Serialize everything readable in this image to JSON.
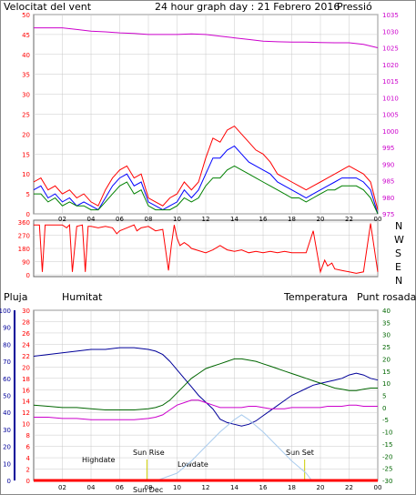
{
  "header": {
    "wind_label": "Velocitat del vent",
    "title": "24 hour graph day : 21 Febrero 2016",
    "pressure_label": "Pressió"
  },
  "colors": {
    "wind": "#ff0000",
    "gust": "#0000ff",
    "avg": "#008000",
    "pressure": "#cc00cc",
    "rain": "#ff0000",
    "humidity": "#000099",
    "temperature": "#006600",
    "dewpoint": "#cc00cc",
    "solar": "#aaccee",
    "grid": "#c8c8c8",
    "frame": "#666666",
    "sun_label": "#cccc00"
  },
  "x_ticks": [
    "02",
    "04",
    "06",
    "08",
    "10",
    "12",
    "14",
    "16",
    "18",
    "20",
    "22",
    "00"
  ],
  "lower_labels": {
    "rain": "Pluja",
    "humidity": "Humitat",
    "temperature": "Temperatura",
    "dewpoint": "Punt rosada"
  },
  "direction_letters": [
    "N",
    "W",
    "S",
    "E",
    "N"
  ],
  "annotations": {
    "highdate": "Highdate",
    "sunrise": "Sun Rise",
    "sun_dec": "Sun Dec",
    "lowdate": "Lowdate",
    "sunset": "Sun Set"
  },
  "chart_data": [
    {
      "type": "line",
      "name": "wind",
      "ylim_left": [
        0,
        50
      ],
      "yticks_left": [
        0,
        5,
        10,
        15,
        20,
        25,
        30,
        35,
        40,
        45,
        50
      ],
      "ylim_right": [
        975,
        1035
      ],
      "yticks_right": [
        975,
        980,
        985,
        990,
        995,
        1000,
        1005,
        1010,
        1015,
        1020,
        1025,
        1030,
        1035
      ],
      "xlim_hours": [
        0,
        24
      ],
      "series": [
        {
          "name": "wind",
          "axis": "left",
          "x": [
            0,
            0.5,
            1,
            1.5,
            2,
            2.5,
            3,
            3.5,
            4,
            4.5,
            5,
            5.5,
            6,
            6.5,
            7,
            7.5,
            8,
            8.5,
            9,
            9.5,
            10,
            10.5,
            11,
            11.5,
            12,
            12.5,
            13,
            13.5,
            14,
            14.5,
            15,
            15.5,
            16,
            16.5,
            17,
            17.5,
            18,
            18.5,
            19,
            19.5,
            20,
            20.5,
            21,
            21.5,
            22,
            22.5,
            23,
            23.5,
            24
          ],
          "y": [
            8,
            9,
            6,
            7,
            5,
            6,
            4,
            5,
            3,
            2,
            6,
            9,
            11,
            12,
            9,
            10,
            4,
            3,
            2,
            4,
            5,
            8,
            6,
            8,
            14,
            19,
            18,
            21,
            22,
            20,
            18,
            16,
            15,
            13,
            10,
            9,
            8,
            7,
            6,
            7,
            8,
            9,
            10,
            11,
            12,
            11,
            10,
            8,
            1
          ]
        },
        {
          "name": "gust",
          "axis": "left",
          "x": [
            0,
            0.5,
            1,
            1.5,
            2,
            2.5,
            3,
            3.5,
            4,
            4.5,
            5,
            5.5,
            6,
            6.5,
            7,
            7.5,
            8,
            8.5,
            9,
            9.5,
            10,
            10.5,
            11,
            11.5,
            12,
            12.5,
            13,
            13.5,
            14,
            14.5,
            15,
            15.5,
            16,
            16.5,
            17,
            17.5,
            18,
            18.5,
            19,
            19.5,
            20,
            20.5,
            21,
            21.5,
            22,
            22.5,
            23,
            23.5,
            24
          ],
          "y": [
            6,
            7,
            4,
            5,
            3,
            4,
            2,
            3,
            2,
            1,
            4,
            7,
            9,
            10,
            7,
            8,
            3,
            2,
            1,
            2,
            3,
            6,
            4,
            6,
            10,
            14,
            14,
            16,
            17,
            15,
            13,
            12,
            11,
            10,
            8,
            7,
            6,
            5,
            4,
            5,
            6,
            7,
            8,
            9,
            9,
            9,
            8,
            6,
            0
          ]
        },
        {
          "name": "avg",
          "axis": "left",
          "x": [
            0,
            0.5,
            1,
            1.5,
            2,
            2.5,
            3,
            3.5,
            4,
            4.5,
            5,
            5.5,
            6,
            6.5,
            7,
            7.5,
            8,
            8.5,
            9,
            9.5,
            10,
            10.5,
            11,
            11.5,
            12,
            12.5,
            13,
            13.5,
            14,
            14.5,
            15,
            15.5,
            16,
            16.5,
            17,
            17.5,
            18,
            18.5,
            19,
            19.5,
            20,
            20.5,
            21,
            21.5,
            22,
            22.5,
            23,
            23.5,
            24
          ],
          "y": [
            5,
            5,
            3,
            4,
            2,
            3,
            2,
            2,
            1,
            1,
            3,
            5,
            7,
            8,
            5,
            6,
            2,
            1,
            1,
            1,
            2,
            4,
            3,
            4,
            7,
            9,
            9,
            11,
            12,
            11,
            10,
            9,
            8,
            7,
            6,
            5,
            4,
            4,
            3,
            4,
            5,
            6,
            6,
            7,
            7,
            7,
            6,
            4,
            0
          ]
        },
        {
          "name": "pressure",
          "axis": "right",
          "x": [
            0,
            1,
            2,
            3,
            4,
            5,
            6,
            7,
            8,
            9,
            10,
            11,
            12,
            13,
            14,
            15,
            16,
            17,
            18,
            19,
            20,
            21,
            22,
            23,
            24
          ],
          "y": [
            1031,
            1031,
            1031,
            1030.5,
            1030,
            1029.8,
            1029.5,
            1029.3,
            1029,
            1029,
            1029,
            1029.2,
            1029,
            1028.5,
            1028,
            1027.5,
            1027,
            1026.8,
            1026.7,
            1026.7,
            1026.6,
            1026.5,
            1026.5,
            1026,
            1025
          ]
        }
      ]
    },
    {
      "type": "line",
      "name": "wind_direction",
      "ylim": [
        0,
        360
      ],
      "yticks": [
        0,
        90,
        180,
        270,
        360
      ],
      "series": [
        {
          "name": "direction",
          "x": [
            0,
            0.4,
            0.6,
            0.8,
            2,
            2.3,
            2.5,
            2.7,
            3,
            3.4,
            3.6,
            3.8,
            4,
            4.5,
            5,
            5.5,
            5.8,
            6,
            6.5,
            7,
            7.2,
            7.5,
            8,
            8.5,
            9,
            9.4,
            9.6,
            9.8,
            10,
            10.2,
            10.5,
            10.8,
            11,
            12,
            12.5,
            13,
            13.5,
            14,
            14.5,
            15,
            15.5,
            16,
            16.5,
            17,
            17.5,
            18,
            18.5,
            19,
            19.5,
            20,
            20.3,
            20.5,
            20.8,
            21,
            21.5,
            22,
            22.5,
            23,
            23.5,
            24
          ],
          "y": [
            340,
            340,
            20,
            340,
            340,
            320,
            340,
            20,
            330,
            340,
            20,
            330,
            330,
            320,
            330,
            320,
            280,
            300,
            320,
            340,
            300,
            320,
            330,
            300,
            310,
            30,
            200,
            340,
            250,
            200,
            220,
            200,
            180,
            150,
            170,
            200,
            170,
            160,
            170,
            150,
            160,
            150,
            160,
            150,
            160,
            150,
            150,
            150,
            300,
            20,
            100,
            60,
            80,
            40,
            30,
            20,
            10,
            20,
            350,
            20
          ]
        }
      ]
    },
    {
      "type": "line",
      "name": "rain_humidity_temperature",
      "ylim_humidity": [
        0,
        100
      ],
      "yticks_humidity": [
        0,
        10,
        20,
        30,
        40,
        50,
        60,
        70,
        80,
        90,
        100
      ],
      "ylim_rain": [
        0,
        30
      ],
      "yticks_rain": [
        0,
        2,
        4,
        6,
        8,
        10,
        12,
        14,
        16,
        18,
        20,
        22,
        24,
        26,
        28,
        30
      ],
      "ylim_temperature": [
        -30,
        40
      ],
      "yticks_temperature": [
        -30,
        -25,
        -20,
        -15,
        -10,
        -5,
        0,
        5,
        10,
        15,
        20,
        25,
        30,
        35,
        40
      ],
      "series": [
        {
          "name": "humidity",
          "axis": "humidity",
          "x": [
            0,
            1,
            2,
            3,
            4,
            5,
            6,
            7,
            8,
            8.5,
            9,
            9.5,
            10,
            10.5,
            11,
            11.5,
            12,
            12.5,
            13,
            13.5,
            14,
            14.5,
            15,
            15.5,
            16,
            16.5,
            17,
            17.5,
            18,
            18.5,
            19,
            19.5,
            20,
            20.5,
            21,
            21.5,
            22,
            22.5,
            23,
            23.5,
            24
          ],
          "y": [
            73,
            74,
            75,
            76,
            77,
            77,
            78,
            78,
            77,
            76,
            74,
            70,
            65,
            60,
            55,
            50,
            46,
            42,
            36,
            34,
            33,
            32,
            33,
            35,
            38,
            41,
            44,
            47,
            50,
            52,
            54,
            56,
            57,
            58,
            59,
            60,
            62,
            63,
            62,
            60,
            59
          ]
        },
        {
          "name": "temperature",
          "axis": "temperature",
          "x": [
            0,
            1,
            2,
            3,
            4,
            5,
            6,
            7,
            8,
            8.5,
            9,
            9.5,
            10,
            10.5,
            11,
            11.5,
            12,
            12.5,
            13,
            13.5,
            14,
            14.5,
            15,
            15.5,
            16,
            16.5,
            17,
            17.5,
            18,
            18.5,
            19,
            19.5,
            20,
            20.5,
            21,
            21.5,
            22,
            22.5,
            23,
            23.5,
            24
          ],
          "y": [
            1,
            0.5,
            0,
            0,
            -0.5,
            -1,
            -1,
            -1,
            -0.5,
            0,
            1,
            3,
            6,
            9,
            12,
            14,
            16,
            17,
            18,
            19,
            20,
            20,
            19.5,
            19,
            18,
            17,
            16,
            15,
            14,
            13,
            12,
            11,
            10,
            9,
            8,
            7.5,
            7,
            7,
            7.5,
            8,
            8
          ]
        },
        {
          "name": "dewpoint",
          "axis": "temperature",
          "x": [
            0,
            1,
            2,
            3,
            4,
            5,
            6,
            7,
            8,
            8.5,
            9,
            9.5,
            10,
            10.5,
            11,
            11.5,
            12,
            12.5,
            13,
            13.5,
            14,
            14.5,
            15,
            15.5,
            16,
            16.5,
            17,
            17.5,
            18,
            18.5,
            19,
            19.5,
            20,
            20.5,
            21,
            21.5,
            22,
            22.5,
            23,
            23.5,
            24
          ],
          "y": [
            -4,
            -4,
            -4.5,
            -4.5,
            -5,
            -5,
            -5,
            -5,
            -4.5,
            -4,
            -3,
            -1,
            1,
            2,
            3,
            3,
            2,
            1,
            0,
            0,
            0,
            0,
            0.5,
            0.5,
            0,
            -0.5,
            -0.5,
            -0.5,
            0,
            0,
            0,
            0,
            0,
            0.5,
            0.5,
            0.5,
            1,
            1,
            0.5,
            0.5,
            0.5
          ]
        },
        {
          "name": "solar",
          "axis": "temperature",
          "x": [
            8.6,
            10,
            11,
            12,
            13,
            14,
            14.5,
            15,
            16,
            17,
            18,
            19,
            19.4
          ],
          "y": [
            -30,
            -27,
            -22,
            -16,
            -10,
            -5,
            -3,
            -5,
            -10,
            -16,
            -22,
            -27,
            -30
          ]
        },
        {
          "name": "rain",
          "axis": "rain",
          "x": [
            0,
            24
          ],
          "y": [
            0,
            0
          ]
        }
      ]
    }
  ]
}
